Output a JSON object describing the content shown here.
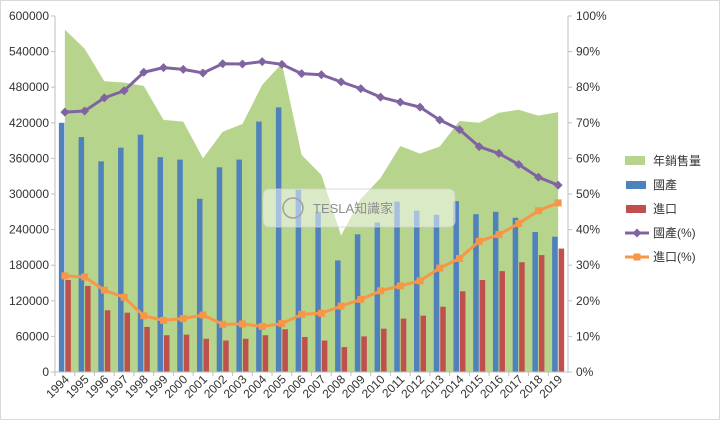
{
  "chart_data": {
    "type": "bar+line+area",
    "categories": [
      "1994",
      "1995",
      "1996",
      "1997",
      "1998",
      "1999",
      "2000",
      "2001",
      "2002",
      "2003",
      "2004",
      "2005",
      "2006",
      "2007",
      "2008",
      "2009",
      "2010",
      "2011",
      "2012",
      "2013",
      "2014",
      "2015",
      "2016",
      "2017",
      "2018",
      "2019"
    ],
    "left_axis": {
      "min": 0,
      "max": 600000,
      "ticks": [
        "0",
        "60000",
        "120000",
        "180000",
        "240000",
        "300000",
        "360000",
        "420000",
        "480000",
        "540000",
        "600000"
      ]
    },
    "right_axis": {
      "min": 0,
      "max": 100,
      "ticks": [
        "0%",
        "10%",
        "20%",
        "30%",
        "40%",
        "50%",
        "60%",
        "70%",
        "80%",
        "90%",
        "100%"
      ]
    },
    "series": [
      {
        "name": "年銷售量",
        "kind": "area",
        "axis": "left",
        "color": "#b7d48c",
        "values": [
          577000,
          545000,
          490000,
          488000,
          482000,
          425000,
          422000,
          360000,
          405000,
          418000,
          484000,
          520000,
          366000,
          332000,
          230000,
          292000,
          327000,
          381000,
          368000,
          380000,
          423000,
          420000,
          437000,
          442000,
          432000,
          438000
        ]
      },
      {
        "name": "國產",
        "kind": "bar",
        "axis": "left",
        "color": "#4f81bd",
        "values": [
          420000,
          396000,
          355000,
          378000,
          400000,
          362000,
          358000,
          292000,
          345000,
          358000,
          422000,
          446000,
          307000,
          270000,
          188000,
          232000,
          252000,
          287000,
          272000,
          265000,
          288000,
          266000,
          270000,
          260000,
          236000,
          228000
        ]
      },
      {
        "name": "進口",
        "kind": "bar",
        "axis": "left",
        "color": "#c0504d",
        "values": [
          155000,
          145000,
          104000,
          100000,
          76000,
          62000,
          63000,
          56000,
          53000,
          56000,
          62000,
          72000,
          59000,
          53000,
          42000,
          60000,
          73000,
          90000,
          95000,
          110000,
          136000,
          155000,
          170000,
          185000,
          197000,
          208000
        ]
      },
      {
        "name": "國產(%)",
        "kind": "line",
        "axis": "right",
        "color": "#8064a2",
        "marker": "diamond",
        "values": [
          73,
          73.3,
          77,
          79,
          84.2,
          85.5,
          85,
          84,
          86.6,
          86.5,
          87.2,
          86.4,
          83.8,
          83.5,
          81.5,
          79.6,
          77.2,
          75.8,
          74.4,
          70.8,
          68.1,
          63.3,
          61.4,
          58.3,
          54.7,
          52.5
        ]
      },
      {
        "name": "進口(%)",
        "kind": "line",
        "axis": "right",
        "color": "#f79646",
        "marker": "square",
        "values": [
          27,
          26.7,
          23,
          21,
          15.8,
          14.5,
          15,
          16,
          13.4,
          13.5,
          12.8,
          13.6,
          16.2,
          16.5,
          18.5,
          20.4,
          22.8,
          24.2,
          25.6,
          29.2,
          31.9,
          36.7,
          38.6,
          41.7,
          45.3,
          47.5
        ]
      }
    ],
    "legend_position": "right",
    "grid": false
  },
  "watermark": {
    "text": "TESLA知識家"
  }
}
